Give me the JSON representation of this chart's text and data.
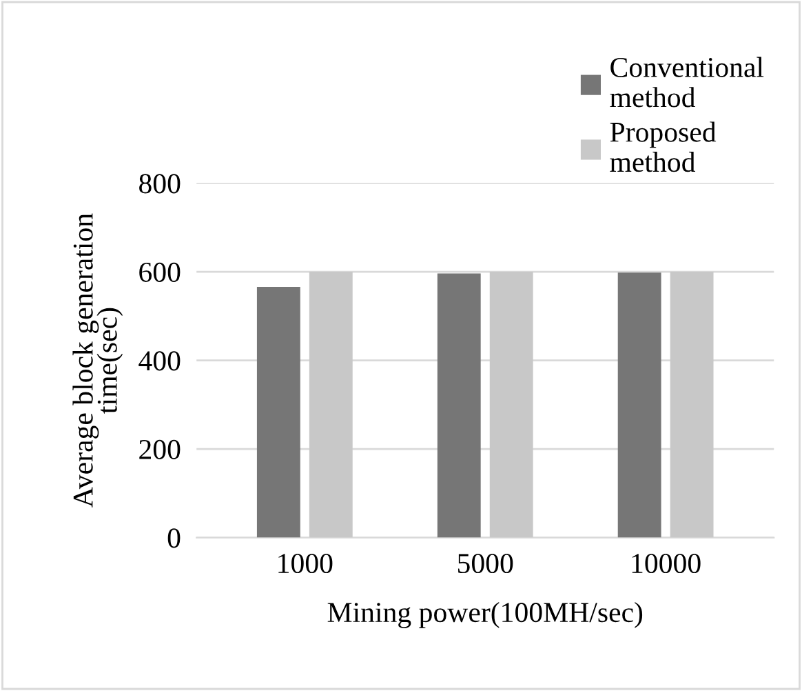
{
  "chart_data": {
    "type": "bar",
    "xlabel": "Mining power(100MH/sec)",
    "ylabel": "Average block generation\ntime(sec)",
    "categories": [
      "1000",
      "5000",
      "10000"
    ],
    "series": [
      {
        "name": "Conventional\nmethod",
        "color": "#767676",
        "values": [
          566,
          596,
          598
        ]
      },
      {
        "name": "Proposed\nmethod",
        "color": "#c8c8c8",
        "values": [
          600,
          600,
          600
        ]
      }
    ],
    "ylim": [
      0,
      800
    ],
    "yticks": [
      0,
      200,
      400,
      600,
      800
    ],
    "grid": "y",
    "legend": "top right"
  }
}
